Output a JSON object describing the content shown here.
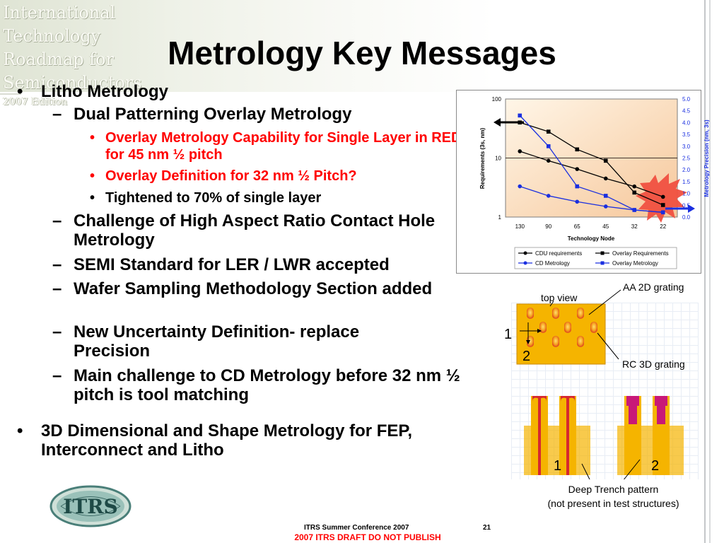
{
  "header": {
    "banner_words": [
      "International",
      "Technology",
      "Roadmap for",
      "Semiconductors",
      "2007 Edition"
    ]
  },
  "title": "Metrology Key Messages",
  "bullets": [
    {
      "level": 1,
      "text": "Litho Metrology",
      "marker": "•"
    },
    {
      "level": 2,
      "text": "Dual Patterning Overlay Metrology",
      "marker": "–"
    },
    {
      "level": 3,
      "text": "Overlay Metrology Capability for Single Layer in RED for 45 nm ½ pitch",
      "marker": "•",
      "color": "#ff0000"
    },
    {
      "level": 3,
      "text": "Overlay Definition for 32 nm ½ Pitch?",
      "marker": "•",
      "color": "#ff0000"
    },
    {
      "level": 3,
      "text": "Tightened to 70% of single layer",
      "marker": "•"
    },
    {
      "level": 2,
      "text": "Challenge of High Aspect Ratio Contact Hole Metrology",
      "marker": "–"
    },
    {
      "level": 2,
      "text": "SEMI Standard for LER / LWR accepted",
      "marker": "–"
    },
    {
      "level": 2,
      "text": "Wafer Sampling Methodology Section added",
      "marker": "–"
    },
    {
      "level": 2,
      "text": "New Uncertainty Definition- replace Precision",
      "marker": "–"
    },
    {
      "level": 2,
      "text": "Main challenge to CD Metrology before 32 nm ½ pitch is tool matching",
      "marker": "–"
    },
    {
      "level": 1,
      "text": "3D Dimensional and Shape Metrology for FEP, Interconnect and Litho",
      "marker": "•"
    }
  ],
  "chart_data": {
    "type": "line",
    "xlabel": "Technology Node",
    "ylabel_left": "Requirements (3s, nm)",
    "ylabel_right": "Metrology Precision (nm, 3s)",
    "categories": [
      "130",
      "90",
      "65",
      "45",
      "32",
      "22"
    ],
    "y_left_scale": "log",
    "y_left_ticks": [
      "1",
      "10",
      "100"
    ],
    "y_left_range": [
      1,
      100
    ],
    "y_right_ticks": [
      "0.0",
      "0.5",
      "1.0",
      "1.5",
      "2.0",
      "2.5",
      "3.0",
      "3.5",
      "4.0",
      "4.5",
      "5.0"
    ],
    "y_right_range": [
      0,
      5
    ],
    "series": [
      {
        "name": "CDU requirements",
        "axis": "left",
        "color": "#000000",
        "marker": "circle",
        "values": [
          13,
          9,
          6.5,
          4.5,
          3.3,
          2.2
        ]
      },
      {
        "name": "Overlay Requirements",
        "axis": "left",
        "color": "#000000",
        "marker": "square",
        "values": [
          40,
          28,
          14,
          9,
          2.6,
          1.6
        ]
      },
      {
        "name": "CD Metrology",
        "axis": "right",
        "color": "#1a2fe0",
        "marker": "circle",
        "values": [
          1.3,
          0.9,
          0.65,
          0.45,
          0.3,
          0.2
        ]
      },
      {
        "name": "Overlay Metrology",
        "axis": "right",
        "color": "#1a2fe0",
        "marker": "square",
        "values": [
          4.3,
          3.0,
          1.3,
          0.9,
          0.3,
          0.2
        ]
      }
    ],
    "grid": false,
    "legend_placement": "bottom"
  },
  "figure": {
    "top_view_label": "top view",
    "aa_label": "AA 2D grating",
    "rc_label": "RC 3D grating",
    "axis_label_1": "1",
    "axis_label_2": "2",
    "trench_label_1": "1",
    "trench_label_2": "2",
    "caption_line1": "Deep Trench pattern",
    "caption_line2": "(not present in test structures)"
  },
  "footer": {
    "conference": "ITRS Summer Conference 2007",
    "page": "21",
    "draft": "2007 ITRS DRAFT DO NOT PUBLISH"
  },
  "logo": {
    "text": "ITRS"
  }
}
